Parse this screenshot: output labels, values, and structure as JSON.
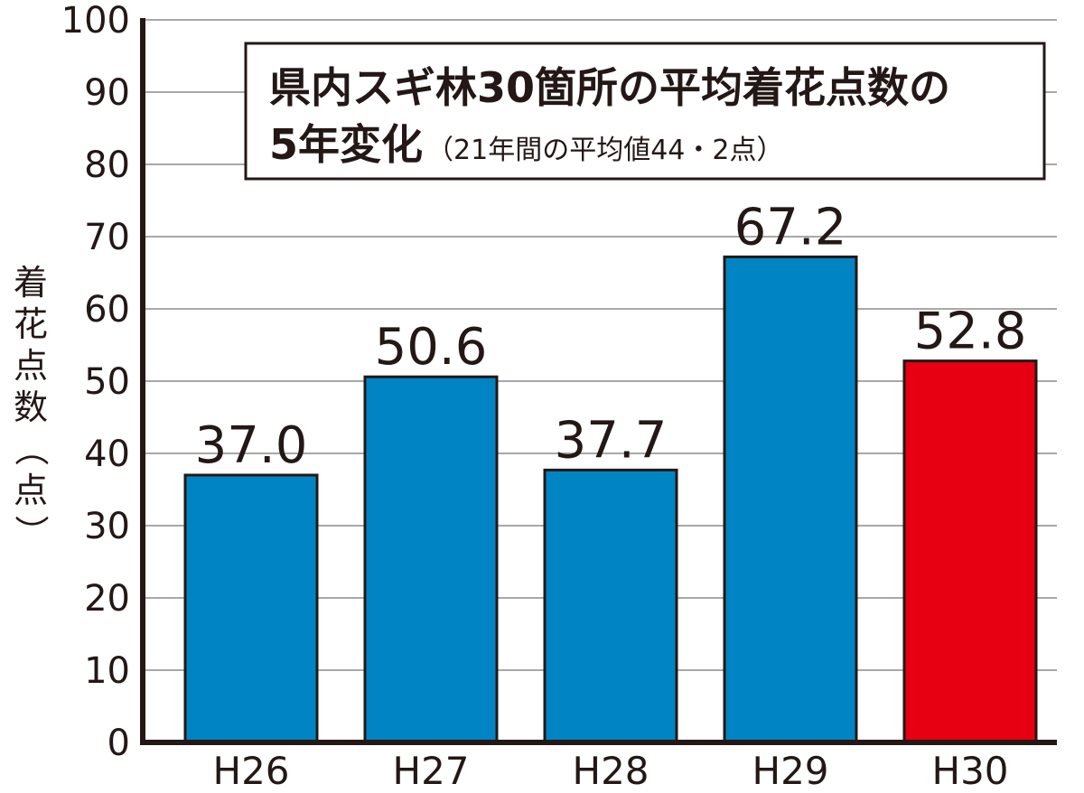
{
  "chart_data": {
    "type": "bar",
    "title_lines": [
      "県内スギ林30箇所の平均着花点数の",
      "5年変化"
    ],
    "subtitle": "（21年間の平均値44・2点）",
    "xlabel": "",
    "ylabel": "着花点数（点）",
    "ylim": [
      0,
      100
    ],
    "yticks": [
      0,
      10,
      20,
      30,
      40,
      50,
      60,
      70,
      80,
      90,
      100
    ],
    "categories": [
      "H26",
      "H27",
      "H28",
      "H29",
      "H30"
    ],
    "values": [
      37.0,
      50.6,
      37.7,
      67.2,
      52.8
    ],
    "value_labels": [
      "37.0",
      "50.6",
      "37.7",
      "67.2",
      "52.8"
    ],
    "bar_colors": [
      "#0084c4",
      "#0084c4",
      "#0084c4",
      "#0084c4",
      "#e60012"
    ],
    "grid": true,
    "legend": "none"
  }
}
